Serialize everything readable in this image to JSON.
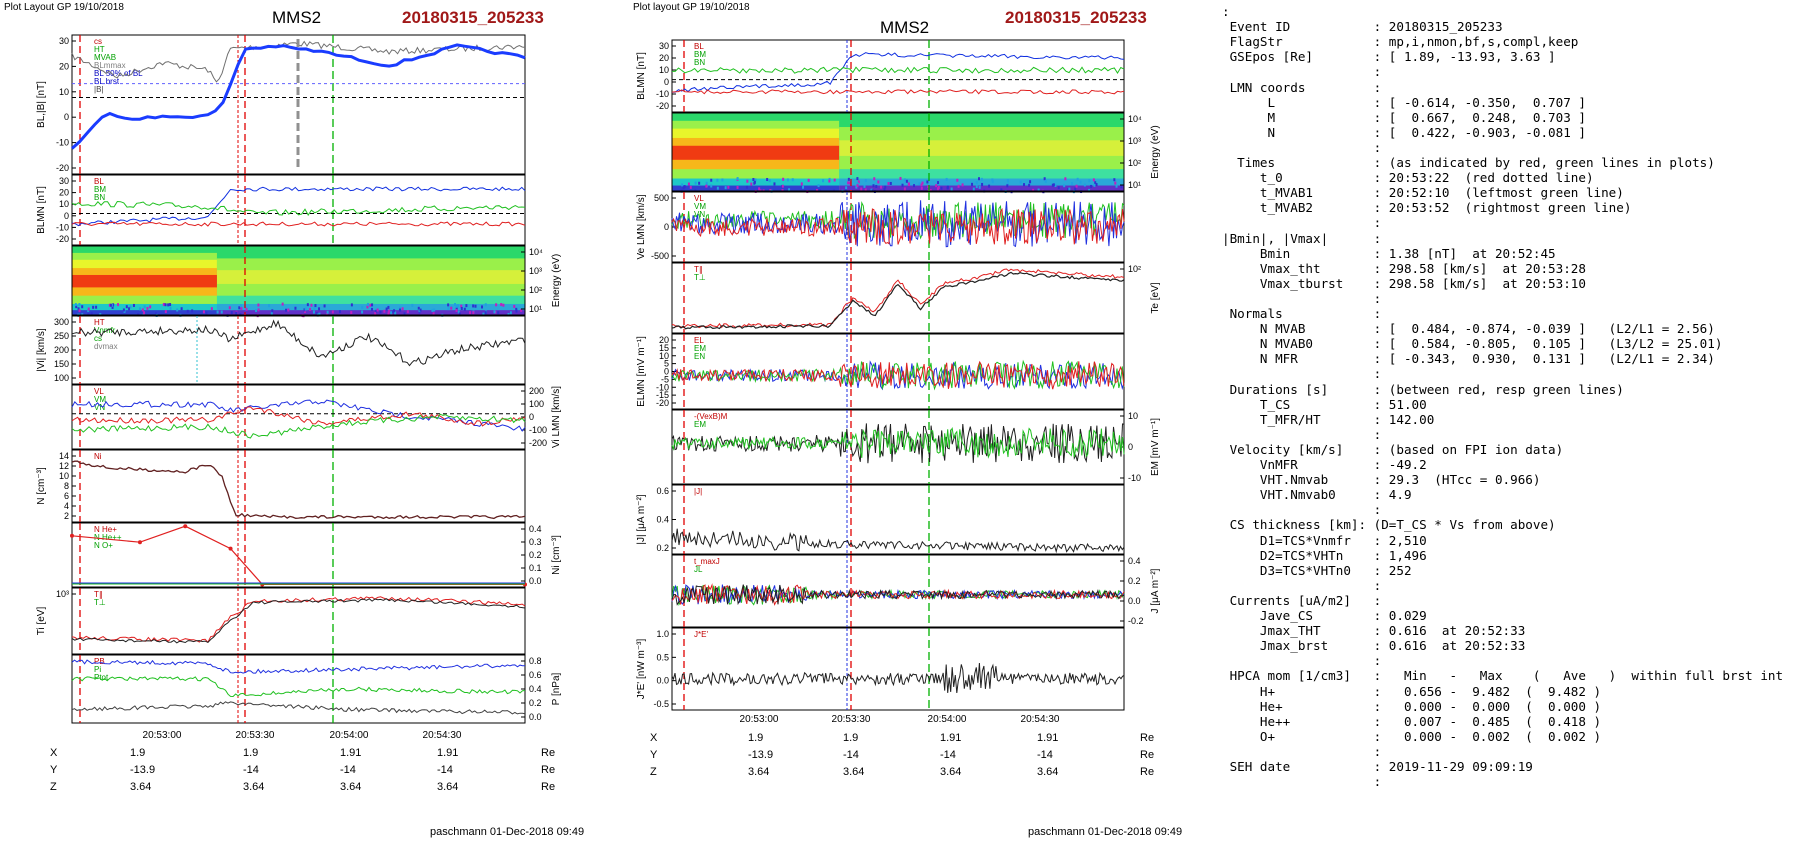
{
  "left_plot": {
    "header_left": "Plot Layout GP 19/10/2018",
    "spacecraft": "MMS2",
    "event": "20180315_205233",
    "footer": "paschmann 01-Dec-2018 09:49",
    "time_ticks": [
      "20:53:00",
      "20:53:30",
      "20:54:00",
      "20:54:30"
    ],
    "position_rows": [
      {
        "name": "X",
        "values": [
          "1.9",
          "1.9",
          "1.91",
          "1.91"
        ],
        "unit": "Re"
      },
      {
        "name": "Y",
        "values": [
          "-13.9",
          "-14",
          "-14",
          "-14"
        ],
        "unit": "Re"
      },
      {
        "name": "Z",
        "values": [
          "3.64",
          "3.64",
          "3.64",
          "3.64"
        ],
        "unit": "Re"
      }
    ],
    "panels": [
      {
        "id": "bl",
        "ylabel": "BL,|B| [nT]",
        "side": "left",
        "ticks": [
          "30",
          "20",
          "10",
          "0",
          "-10",
          "-20"
        ],
        "legend": [
          "cs",
          "HT",
          "MVAB",
          "BLmmax",
          "BL 50% of BL",
          "BL brst",
          "|B|"
        ]
      },
      {
        "id": "blmn",
        "ylabel": "BLMN [nT]",
        "side": "left",
        "ticks": [
          "30",
          "20",
          "10",
          "0",
          "-10",
          "-20"
        ],
        "legend": [
          "BL",
          "BM",
          "BN"
        ]
      },
      {
        "id": "energy",
        "ylabel": "Energy (eV)",
        "side": "right",
        "ticks": [
          "10⁴",
          "10³",
          "10²",
          "10¹"
        ],
        "legend": []
      },
      {
        "id": "vi",
        "ylabel": "|Vi| [km/s]",
        "side": "left",
        "ticks": [
          "300",
          "250",
          "200",
          "150",
          "100"
        ],
        "legend": [
          "HT",
          "Vnmfr",
          "cs",
          "dvmax"
        ]
      },
      {
        "id": "vilmn",
        "ylabel": "Vi LMN [km/s]",
        "side": "right",
        "ticks": [
          "200",
          "100",
          "0",
          "-100",
          "-200"
        ],
        "legend": [
          "VL",
          "VM",
          "VN"
        ]
      },
      {
        "id": "n",
        "ylabel": "N [cm⁻³]",
        "side": "left",
        "ticks": [
          "14",
          "12",
          "10",
          "8",
          "6",
          "4",
          "2"
        ],
        "legend": [
          "Ni"
        ]
      },
      {
        "id": "ni",
        "ylabel": "Ni [cm⁻³]",
        "side": "right",
        "ticks": [
          "0.4",
          "0.3",
          "0.2",
          "0.1",
          "0.0"
        ],
        "legend": [
          "N He+",
          "N He++",
          "N O+"
        ]
      },
      {
        "id": "ti",
        "ylabel": "Ti [eV]",
        "side": "left",
        "ticks": [
          "10³"
        ],
        "legend": [
          "T∥",
          "T⊥"
        ]
      },
      {
        "id": "p",
        "ylabel": "P [nPa]",
        "side": "right",
        "ticks": [
          "0.8",
          "0.6",
          "0.4",
          "0.2",
          "0.0"
        ],
        "legend": [
          "PB",
          "Pi",
          "Ptot"
        ]
      }
    ]
  },
  "right_plot": {
    "header_left": "Plot layout GP 19/10/2018",
    "spacecraft": "MMS2",
    "event": "20180315_205233",
    "footer": "paschmann 01-Dec-2018 09:49",
    "time_ticks": [
      "20:53:00",
      "20:53:30",
      "20:54:00",
      "20:54:30"
    ],
    "position_rows": [
      {
        "name": "X",
        "values": [
          "1.9",
          "1.9",
          "1.91",
          "1.91"
        ],
        "unit": "Re"
      },
      {
        "name": "Y",
        "values": [
          "-13.9",
          "-14",
          "-14",
          "-14"
        ],
        "unit": "Re"
      },
      {
        "name": "Z",
        "values": [
          "3.64",
          "3.64",
          "3.64",
          "3.64"
        ],
        "unit": "Re"
      }
    ],
    "panels": [
      {
        "id": "blmn",
        "ylabel": "BLMN [nT]",
        "side": "left",
        "ticks": [
          "30",
          "20",
          "10",
          "0",
          "-10",
          "-20"
        ],
        "legend": [
          "BL",
          "BM",
          "BN"
        ]
      },
      {
        "id": "energy",
        "ylabel": "Energy (eV)",
        "side": "right",
        "ticks": [
          "10⁴",
          "10³",
          "10²",
          "10¹"
        ],
        "legend": []
      },
      {
        "id": "ve",
        "ylabel": "Ve LMN [km/s]",
        "side": "left",
        "ticks": [
          "500",
          "0",
          "-500"
        ],
        "legend": [
          "VL",
          "VM",
          "VN"
        ]
      },
      {
        "id": "te",
        "ylabel": "Te [eV]",
        "side": "right",
        "ticks": [
          "10²"
        ],
        "legend": [
          "T∥",
          "T⊥"
        ]
      },
      {
        "id": "elmn",
        "ylabel": "ELMN [mV m⁻¹]",
        "side": "left",
        "ticks": [
          "20",
          "15",
          "10",
          "5",
          "0",
          "-5",
          "-10",
          "-15",
          "-20"
        ],
        "legend": [
          "EL",
          "EM",
          "EN"
        ]
      },
      {
        "id": "em",
        "ylabel": "EM [mV m⁻¹]",
        "side": "right",
        "ticks": [
          "10",
          "0",
          "-10"
        ],
        "legend": [
          "-(VexB)M",
          "EM"
        ]
      },
      {
        "id": "j",
        "ylabel": "|J| [μA m⁻²]",
        "side": "left",
        "ticks": [
          "0.6",
          "0.4",
          "0.2"
        ],
        "legend": [
          "|J|"
        ]
      },
      {
        "id": "jlmn",
        "ylabel": "J [μA m⁻²]",
        "side": "right",
        "ticks": [
          "0.4",
          "0.2",
          "0.0",
          "-0.2"
        ],
        "legend": [
          "t_maxJ",
          "JL"
        ]
      },
      {
        "id": "je",
        "ylabel": "J*E' [nW m⁻³]",
        "side": "left",
        "ticks": [
          "1.0",
          "0.5",
          "0.0",
          "-0.5"
        ],
        "legend": [
          "J*E'"
        ]
      }
    ]
  },
  "info_rows": [
    ":",
    " Event ID           : 20180315_205233",
    " FlagStr            : mp,i,nmon,bf,s,compl,keep",
    " GSEpos [Re]        : [ 1.89, -13.93, 3.63 ]",
    "                    :",
    " LMN coords         :",
    "      L             : [ -0.614, -0.350,  0.707 ]",
    "      M             : [  0.667,  0.248,  0.703 ]",
    "      N             : [  0.422, -0.903, -0.081 ]",
    "                    :",
    "  Times             : (as indicated by red, green lines in plots)",
    "     t_0            : 20:53:22  (red dotted line)",
    "     t_MVAB1        : 20:52:10  (leftmost green line)",
    "     t_MVAB2        : 20:53:52  (rightmost green line)",
    "                    :",
    "|Bmin|, |Vmax|      :",
    "     Bmin           : 1.38 [nT]  at 20:52:45",
    "     Vmax_tht       : 298.58 [km/s]  at 20:53:28",
    "     Vmax_tburst    : 298.58 [km/s]  at 20:53:10",
    "                    :",
    " Normals            :",
    "     N MVAB         : [  0.484, -0.874, -0.039 ]   (L2/L1 = 2.56)",
    "     N MVAB0        : [  0.584, -0.805,  0.105 ]   (L3/L2 = 25.01)",
    "     N MFR          : [ -0.343,  0.930,  0.131 ]   (L2/L1 = 2.34)",
    "                    :",
    " Durations [s]      : (between red, resp green lines)",
    "     T_CS           : 51.00",
    "     T_MFR/HT       : 142.00",
    "                    :",
    " Velocity [km/s]    : (based on FPI ion data)",
    "     VnMFR          : -49.2",
    "     VHT.Nmvab      : 29.3  (HTcc = 0.966)",
    "     VHT.Nmvab0     : 4.9",
    "                    :",
    " CS thickness [km]: (D=T_CS * Vs from above)",
    "     D1=TCS*Vnmfr   : 2,510",
    "     D2=TCS*VHTn    : 1,496",
    "     D3=TCS*VHTn0   : 252",
    "                    :",
    " Currents [uA/m2]   :",
    "     Jave_CS        : 0.029",
    "     Jmax_THT       : 0.616  at 20:52:33",
    "     Jmax_brst      : 0.616  at 20:52:33",
    "                    :",
    " HPCA mom [1/cm3]   :   Min   -   Max    (   Ave   )  within full brst int",
    "     H+             :   0.656 -  9.482  (  9.482 )",
    "     He+            :   0.000 -  0.000  (  0.000 )",
    "     He++           :   0.007 -  0.485  (  0.418 )",
    "     O+             :   0.000 -  0.002  (  0.002 )",
    "                    :",
    " SEH date           : 2019-11-29 09:09:19",
    "                    :"
  ],
  "chart_data": [
    {
      "type": "line",
      "panel": "left BL,|B|",
      "ylim": [
        -25,
        35
      ],
      "x": [
        "20:52:35",
        "20:52:50",
        "20:53:05",
        "20:53:20",
        "20:53:28",
        "20:53:40",
        "20:54:00",
        "20:54:20",
        "20:54:40",
        "20:54:55"
      ],
      "series": [
        {
          "name": "BL brst",
          "values": [
            -20,
            -8,
            -10,
            -8,
            22,
            28,
            27,
            18,
            27,
            24
          ]
        },
        {
          "name": "|B|",
          "values": [
            25,
            10,
            26,
            22,
            28,
            30,
            29,
            27,
            30,
            28
          ]
        }
      ]
    },
    {
      "type": "line",
      "panel": "left Ni",
      "ylim": [
        0,
        14
      ],
      "x": [
        "20:52:35",
        "20:52:50",
        "20:53:05",
        "20:53:20",
        "20:53:28",
        "20:53:40",
        "20:54:00",
        "20:54:30",
        "20:54:55"
      ],
      "series": [
        {
          "name": "Ni",
          "values": [
            12,
            10,
            9.5,
            9,
            2.5,
            1.5,
            1.2,
            1.0,
            1.0
          ]
        }
      ]
    },
    {
      "type": "line",
      "panel": "left Ni HPCA",
      "ylim": [
        0,
        0.45
      ],
      "x": [
        "20:52:35",
        "20:52:48",
        "20:53:00",
        "20:53:12",
        "20:53:30",
        "20:54:00",
        "20:54:55"
      ],
      "series": [
        {
          "name": "N He++",
          "values": [
            0.38,
            0.33,
            0.42,
            0.25,
            0.01,
            0.005,
            0.005
          ]
        }
      ]
    }
  ]
}
